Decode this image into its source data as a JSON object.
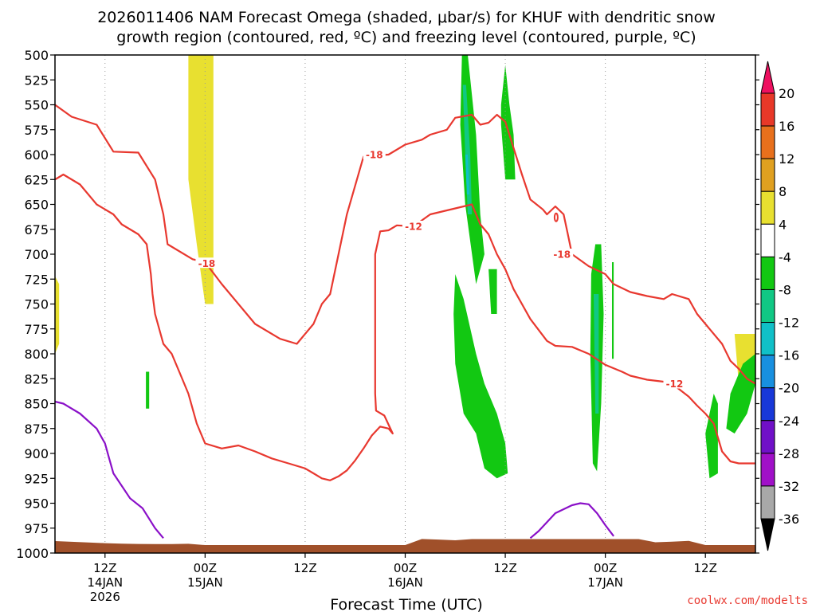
{
  "chart_data": {
    "type": "time-height",
    "title_line1": "2026011406 NAM Forecast Omega (shaded, μbar/s) for KHUF with dendritic snow",
    "title_line2": "growth region (contoured, red, ºC) and freezing level (contoured, purple, ºC)",
    "xlabel": "Forecast Time (UTC)",
    "credit": "coolwx.com/modelts",
    "y_axis": {
      "units": "hPa",
      "range": [
        1000,
        500
      ],
      "ticks": [
        500,
        525,
        550,
        575,
        600,
        625,
        650,
        675,
        700,
        725,
        750,
        775,
        800,
        825,
        850,
        875,
        900,
        925,
        950,
        975,
        1000
      ]
    },
    "x_axis": {
      "range_hours": [
        0,
        84
      ],
      "ticks": [
        {
          "hour": 6,
          "label": "12Z",
          "sub1": "14JAN",
          "sub2": "2026"
        },
        {
          "hour": 18,
          "label": "00Z",
          "sub1": "15JAN",
          "sub2": ""
        },
        {
          "hour": 30,
          "label": "12Z",
          "sub1": "",
          "sub2": ""
        },
        {
          "hour": 42,
          "label": "00Z",
          "sub1": "16JAN",
          "sub2": ""
        },
        {
          "hour": 54,
          "label": "12Z",
          "sub1": "",
          "sub2": ""
        },
        {
          "hour": 66,
          "label": "00Z",
          "sub1": "17JAN",
          "sub2": ""
        },
        {
          "hour": 78,
          "label": "12Z",
          "sub1": "",
          "sub2": ""
        }
      ]
    },
    "colorbar": {
      "labels": [
        "20",
        "16",
        "12",
        "8",
        "4",
        "-4",
        "-8",
        "-12",
        "-16",
        "-20",
        "-24",
        "-28",
        "-32",
        "-36"
      ],
      "colors": [
        "#ee1060",
        "#e83828",
        "#e8701c",
        "#e0a020",
        "#e8e030",
        "#ffffff",
        "#12c812",
        "#10c884",
        "#10c0c8",
        "#1890e0",
        "#1838d8",
        "#7010c8",
        "#a010c8",
        "#a8a8a8",
        "#000000"
      ]
    },
    "contour_labels": [
      {
        "text": "-18",
        "hour": 38.3,
        "hPa": 600
      },
      {
        "text": "-18",
        "hour": 18.2,
        "hPa": 709
      },
      {
        "text": "-12",
        "hour": 43.0,
        "hPa": 672
      },
      {
        "text": "-18",
        "hour": 60.8,
        "hPa": 700
      },
      {
        "text": "-12",
        "hour": 74.3,
        "hPa": 830
      }
    ],
    "red_contours": [
      [
        [
          0,
          550
        ],
        [
          2,
          562
        ],
        [
          5,
          570
        ],
        [
          7,
          597
        ],
        [
          10,
          598
        ],
        [
          12,
          625
        ],
        [
          13,
          660
        ],
        [
          13.5,
          690
        ],
        [
          16.5,
          705
        ],
        [
          18,
          708
        ],
        [
          20,
          730
        ],
        [
          24,
          770
        ],
        [
          27,
          785
        ],
        [
          29,
          790
        ],
        [
          31,
          770
        ],
        [
          32,
          750
        ],
        [
          33,
          740
        ],
        [
          35,
          660
        ],
        [
          37,
          602
        ],
        [
          40,
          600
        ],
        [
          42,
          590
        ],
        [
          44,
          585
        ],
        [
          45,
          580
        ],
        [
          47,
          575
        ],
        [
          48,
          563
        ],
        [
          50,
          560
        ],
        [
          51,
          570
        ],
        [
          52,
          568
        ],
        [
          53,
          560
        ],
        [
          54,
          567
        ],
        [
          56,
          620
        ],
        [
          57,
          645
        ],
        [
          58.5,
          655
        ],
        [
          59,
          660
        ],
        [
          60,
          652
        ],
        [
          61,
          660
        ],
        [
          61.5,
          680
        ],
        [
          62,
          700
        ],
        [
          64,
          712
        ],
        [
          66,
          720
        ],
        [
          67,
          730
        ],
        [
          69,
          738
        ],
        [
          71,
          742
        ],
        [
          73,
          745
        ],
        [
          74,
          740
        ],
        [
          76,
          745
        ],
        [
          77,
          760
        ],
        [
          78,
          770
        ],
        [
          80,
          790
        ],
        [
          81,
          807
        ],
        [
          82,
          815
        ],
        [
          83,
          825
        ],
        [
          84,
          830
        ]
      ],
      [
        [
          0,
          625
        ],
        [
          1,
          620
        ],
        [
          3,
          630
        ],
        [
          5,
          650
        ],
        [
          7,
          660
        ],
        [
          8,
          670
        ],
        [
          10,
          680
        ],
        [
          11,
          690
        ],
        [
          11.5,
          720
        ],
        [
          11.7,
          740
        ],
        [
          12,
          760
        ],
        [
          13,
          790
        ],
        [
          14,
          800
        ],
        [
          15,
          820
        ],
        [
          16,
          840
        ],
        [
          17,
          870
        ],
        [
          18,
          890
        ],
        [
          20,
          895
        ],
        [
          22,
          892
        ],
        [
          24,
          898
        ],
        [
          26,
          905
        ],
        [
          28,
          910
        ],
        [
          30,
          915
        ],
        [
          31,
          920
        ],
        [
          32,
          925
        ],
        [
          33,
          927
        ],
        [
          34,
          923
        ],
        [
          35,
          917
        ],
        [
          36,
          907
        ],
        [
          37,
          895
        ],
        [
          38,
          882
        ],
        [
          39,
          873
        ],
        [
          40,
          875
        ],
        [
          40.5,
          880
        ],
        [
          39.5,
          862
        ],
        [
          38.5,
          857
        ],
        [
          38.4,
          840
        ],
        [
          38.4,
          775
        ],
        [
          38.4,
          700
        ],
        [
          39,
          677
        ],
        [
          40,
          676
        ],
        [
          41,
          671
        ],
        [
          43,
          672
        ],
        [
          45,
          660
        ],
        [
          46,
          658
        ],
        [
          47,
          656
        ],
        [
          49,
          652
        ],
        [
          50,
          650
        ],
        [
          51,
          670
        ],
        [
          52,
          680
        ],
        [
          53,
          700
        ],
        [
          54,
          715
        ],
        [
          55,
          735
        ],
        [
          57,
          765
        ],
        [
          59,
          787
        ],
        [
          60,
          792
        ],
        [
          62,
          793
        ],
        [
          64,
          800
        ],
        [
          66,
          811
        ],
        [
          68,
          818
        ],
        [
          69,
          822
        ],
        [
          71,
          826
        ],
        [
          73,
          828
        ],
        [
          74,
          830
        ],
        [
          76,
          843
        ],
        [
          77,
          852
        ],
        [
          78,
          860
        ],
        [
          79,
          870
        ],
        [
          80,
          898
        ],
        [
          81,
          908
        ],
        [
          82,
          910
        ],
        [
          84,
          910
        ]
      ]
    ],
    "purple_contours": [
      [
        [
          0,
          848
        ],
        [
          1,
          850
        ],
        [
          3,
          860
        ],
        [
          5,
          875
        ],
        [
          6,
          890
        ],
        [
          6.5,
          905
        ],
        [
          7,
          920
        ],
        [
          9,
          945
        ],
        [
          10.5,
          955
        ],
        [
          12,
          975
        ],
        [
          13,
          985
        ]
      ],
      [
        [
          57,
          985
        ],
        [
          58,
          978
        ],
        [
          60,
          960
        ],
        [
          62,
          952
        ],
        [
          63,
          950
        ],
        [
          64,
          951
        ],
        [
          65,
          960
        ],
        [
          66,
          972
        ],
        [
          67,
          983
        ]
      ]
    ],
    "shaded_regions": [
      {
        "omega_bin": "4 to 8",
        "color": "#e8e030",
        "points": [
          [
            16,
            500
          ],
          [
            19,
            500
          ],
          [
            19,
            750
          ],
          [
            18,
            750
          ],
          [
            17,
            690
          ],
          [
            16,
            625
          ]
        ]
      },
      {
        "omega_bin": "4 to 8",
        "color": "#e8e030",
        "points": [
          [
            0,
            722
          ],
          [
            0.5,
            730
          ],
          [
            0.5,
            790
          ],
          [
            0,
            800
          ]
        ]
      },
      {
        "omega_bin": "4 to 8",
        "color": "#e8e030",
        "points": [
          [
            81.5,
            780
          ],
          [
            84,
            780
          ],
          [
            84,
            825
          ],
          [
            82,
            830
          ]
        ]
      },
      {
        "omega_bin": "-8 to -4",
        "color": "#12c812",
        "points": [
          [
            48.8,
            500
          ],
          [
            49.5,
            500
          ],
          [
            50.5,
            580
          ],
          [
            51,
            660
          ],
          [
            51.5,
            700
          ],
          [
            50.5,
            730
          ],
          [
            49.2,
            650
          ],
          [
            48.6,
            570
          ]
        ]
      },
      {
        "omega_bin": "-8 to -4",
        "color": "#12c812",
        "points": [
          [
            54,
            510
          ],
          [
            54.5,
            550
          ],
          [
            55,
            580
          ],
          [
            55.2,
            625
          ],
          [
            54,
            625
          ],
          [
            53.5,
            570
          ],
          [
            53.5,
            550
          ]
        ]
      },
      {
        "omega_bin": "-8 to -4",
        "color": "#12c812",
        "points": [
          [
            48,
            720
          ],
          [
            49,
            745
          ],
          [
            50.5,
            800
          ],
          [
            51.5,
            830
          ],
          [
            53,
            860
          ],
          [
            54,
            890
          ],
          [
            54.3,
            920
          ],
          [
            53,
            925
          ],
          [
            51.5,
            915
          ],
          [
            50.5,
            880
          ],
          [
            49,
            860
          ],
          [
            48,
            810
          ],
          [
            47.8,
            760
          ]
        ]
      },
      {
        "omega_bin": "-8 to -4",
        "color": "#12c812",
        "points": [
          [
            52,
            715
          ],
          [
            53,
            715
          ],
          [
            53,
            760
          ],
          [
            52.3,
            760
          ]
        ]
      },
      {
        "omega_bin": "-8 to -4",
        "color": "#12c812",
        "points": [
          [
            64.8,
            690
          ],
          [
            65.5,
            690
          ],
          [
            65.8,
            760
          ],
          [
            65.5,
            850
          ],
          [
            65,
            918
          ],
          [
            64.5,
            910
          ],
          [
            64.2,
            800
          ],
          [
            64.3,
            720
          ]
        ]
      },
      {
        "omega_bin": "-8 to -4",
        "color": "#12c812",
        "points": [
          [
            66.8,
            708
          ],
          [
            67,
            708
          ],
          [
            67,
            805
          ],
          [
            66.8,
            805
          ]
        ]
      },
      {
        "omega_bin": "-8 to -4",
        "color": "#12c812",
        "points": [
          [
            79,
            840
          ],
          [
            79.5,
            850
          ],
          [
            79.5,
            900
          ],
          [
            79.5,
            920
          ],
          [
            78.5,
            925
          ],
          [
            78,
            880
          ],
          [
            78.5,
            860
          ]
        ]
      },
      {
        "omega_bin": "-8 to -4",
        "color": "#12c812",
        "points": [
          [
            82.5,
            810
          ],
          [
            84,
            800
          ],
          [
            84,
            830
          ],
          [
            83,
            860
          ],
          [
            81.5,
            880
          ],
          [
            80.5,
            875
          ],
          [
            81,
            840
          ]
        ]
      },
      {
        "omega_bin": "-8 to -4",
        "color": "#12c812",
        "points": [
          [
            10.9,
            818
          ],
          [
            11.3,
            818
          ],
          [
            11.3,
            855
          ],
          [
            10.9,
            855
          ]
        ]
      },
      {
        "omega_bin": "-12 to -8",
        "color": "#10c884",
        "points": [
          [
            48.9,
            530
          ],
          [
            49.3,
            530
          ],
          [
            49.8,
            600
          ],
          [
            50,
            660
          ],
          [
            49.5,
            660
          ],
          [
            49.2,
            600
          ]
        ]
      },
      {
        "omega_bin": "-12 to -8",
        "color": "#10c884",
        "points": [
          [
            64.6,
            740
          ],
          [
            65.2,
            740
          ],
          [
            65.2,
            860
          ],
          [
            64.8,
            860
          ]
        ]
      },
      {
        "omega_bin": "-16 to -12",
        "color": "#10c0c8",
        "points": [
          [
            49.2,
            600
          ],
          [
            49.5,
            600
          ],
          [
            49.7,
            640
          ],
          [
            49.4,
            640
          ]
        ]
      }
    ],
    "terrain_color": "#a0502a"
  }
}
